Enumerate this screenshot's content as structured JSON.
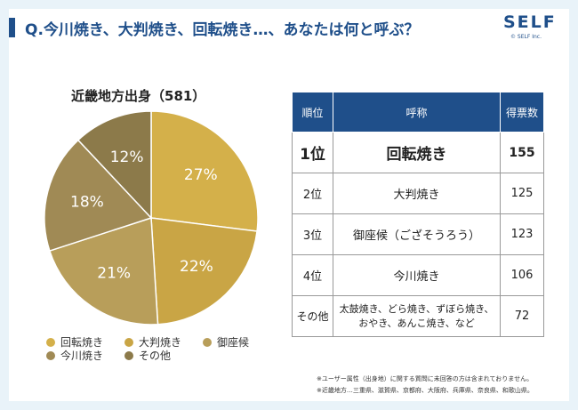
{
  "header": {
    "title": "Q.今川焼き、大判焼き、回転焼き…、あなたは何と呼ぶ？",
    "logo": "SELF",
    "logo_sub": "© SELF Inc."
  },
  "chart_data": {
    "type": "pie",
    "title": "近畿地方出身（581）",
    "slices": [
      {
        "label": "回転焼き",
        "value": 27,
        "display": "27%",
        "color": "#d4b04a"
      },
      {
        "label": "大判焼き",
        "value": 22,
        "display": "22%",
        "color": "#c9a545"
      },
      {
        "label": "御座候",
        "value": 21,
        "display": "21%",
        "color": "#b89e5a"
      },
      {
        "label": "今川焼き",
        "value": 18,
        "display": "18%",
        "color": "#a08a55"
      },
      {
        "label": "その他",
        "value": 12,
        "display": "12%",
        "color": "#8c7a4a"
      }
    ]
  },
  "table": {
    "headers": [
      "順位",
      "呼称",
      "得票数"
    ],
    "rows": [
      {
        "rank": "1位",
        "name": "回転焼き",
        "votes": "155"
      },
      {
        "rank": "2位",
        "name": "大判焼き",
        "votes": "125"
      },
      {
        "rank": "3位",
        "name": "御座候（ござそうろう）",
        "votes": "123"
      },
      {
        "rank": "4位",
        "name": "今川焼き",
        "votes": "106"
      },
      {
        "rank": "その他",
        "name_line1": "太鼓焼き、どら焼き、ずぼら焼き、",
        "name_line2": "おやき、あんこ焼き、など",
        "votes": "72"
      }
    ]
  },
  "notes": [
    "※ユーザー属性（出身地）に関する質問に未回答の方は含まれておりません。",
    "※近畿地方…三重県、滋賀県、京都府、大阪府、兵庫県、奈良県、和歌山県。"
  ]
}
